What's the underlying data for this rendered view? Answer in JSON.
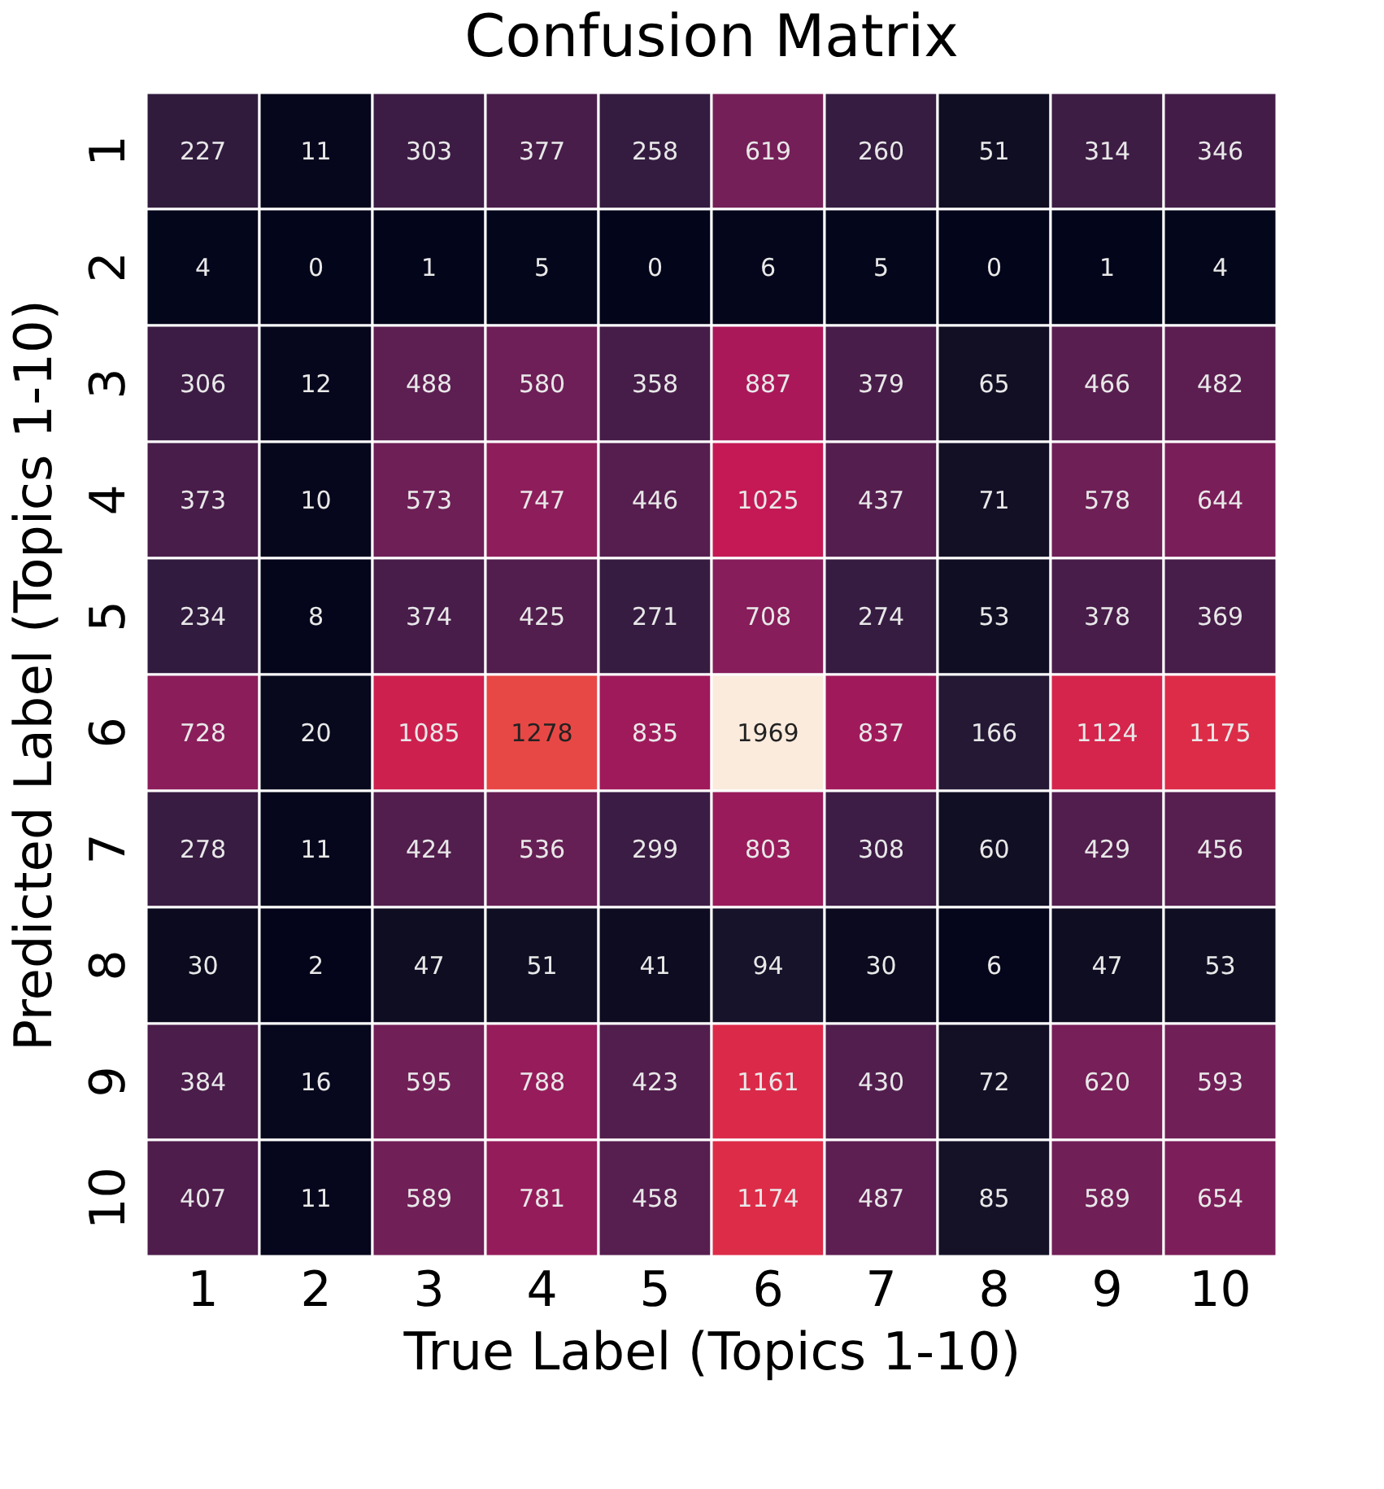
{
  "chart_data": {
    "type": "heatmap",
    "title": "Confusion Matrix",
    "xlabel": "True Label (Topics 1-10)",
    "ylabel": "Predicted Label (Topics 1-10)",
    "categories": [
      "1",
      "2",
      "3",
      "4",
      "5",
      "6",
      "7",
      "8",
      "9",
      "10"
    ],
    "y_categories": [
      "1",
      "2",
      "3",
      "4",
      "5",
      "6",
      "7",
      "8",
      "9",
      "10"
    ],
    "cells": [
      [
        227,
        11,
        303,
        377,
        258,
        619,
        260,
        51,
        314,
        346
      ],
      [
        4,
        0,
        1,
        5,
        0,
        6,
        5,
        0,
        1,
        4
      ],
      [
        306,
        12,
        488,
        580,
        358,
        887,
        379,
        65,
        466,
        482
      ],
      [
        373,
        10,
        573,
        747,
        446,
        1025,
        437,
        71,
        578,
        644
      ],
      [
        234,
        8,
        374,
        425,
        271,
        708,
        274,
        53,
        378,
        369
      ],
      [
        728,
        20,
        1085,
        1278,
        835,
        1969,
        837,
        166,
        1124,
        1175
      ],
      [
        278,
        11,
        424,
        536,
        299,
        803,
        308,
        60,
        429,
        456
      ],
      [
        30,
        2,
        47,
        51,
        41,
        94,
        30,
        6,
        47,
        53
      ],
      [
        384,
        16,
        595,
        788,
        423,
        1161,
        430,
        72,
        620,
        593
      ],
      [
        407,
        11,
        589,
        781,
        458,
        1174,
        487,
        85,
        589,
        654
      ]
    ],
    "data_labels": true
  }
}
